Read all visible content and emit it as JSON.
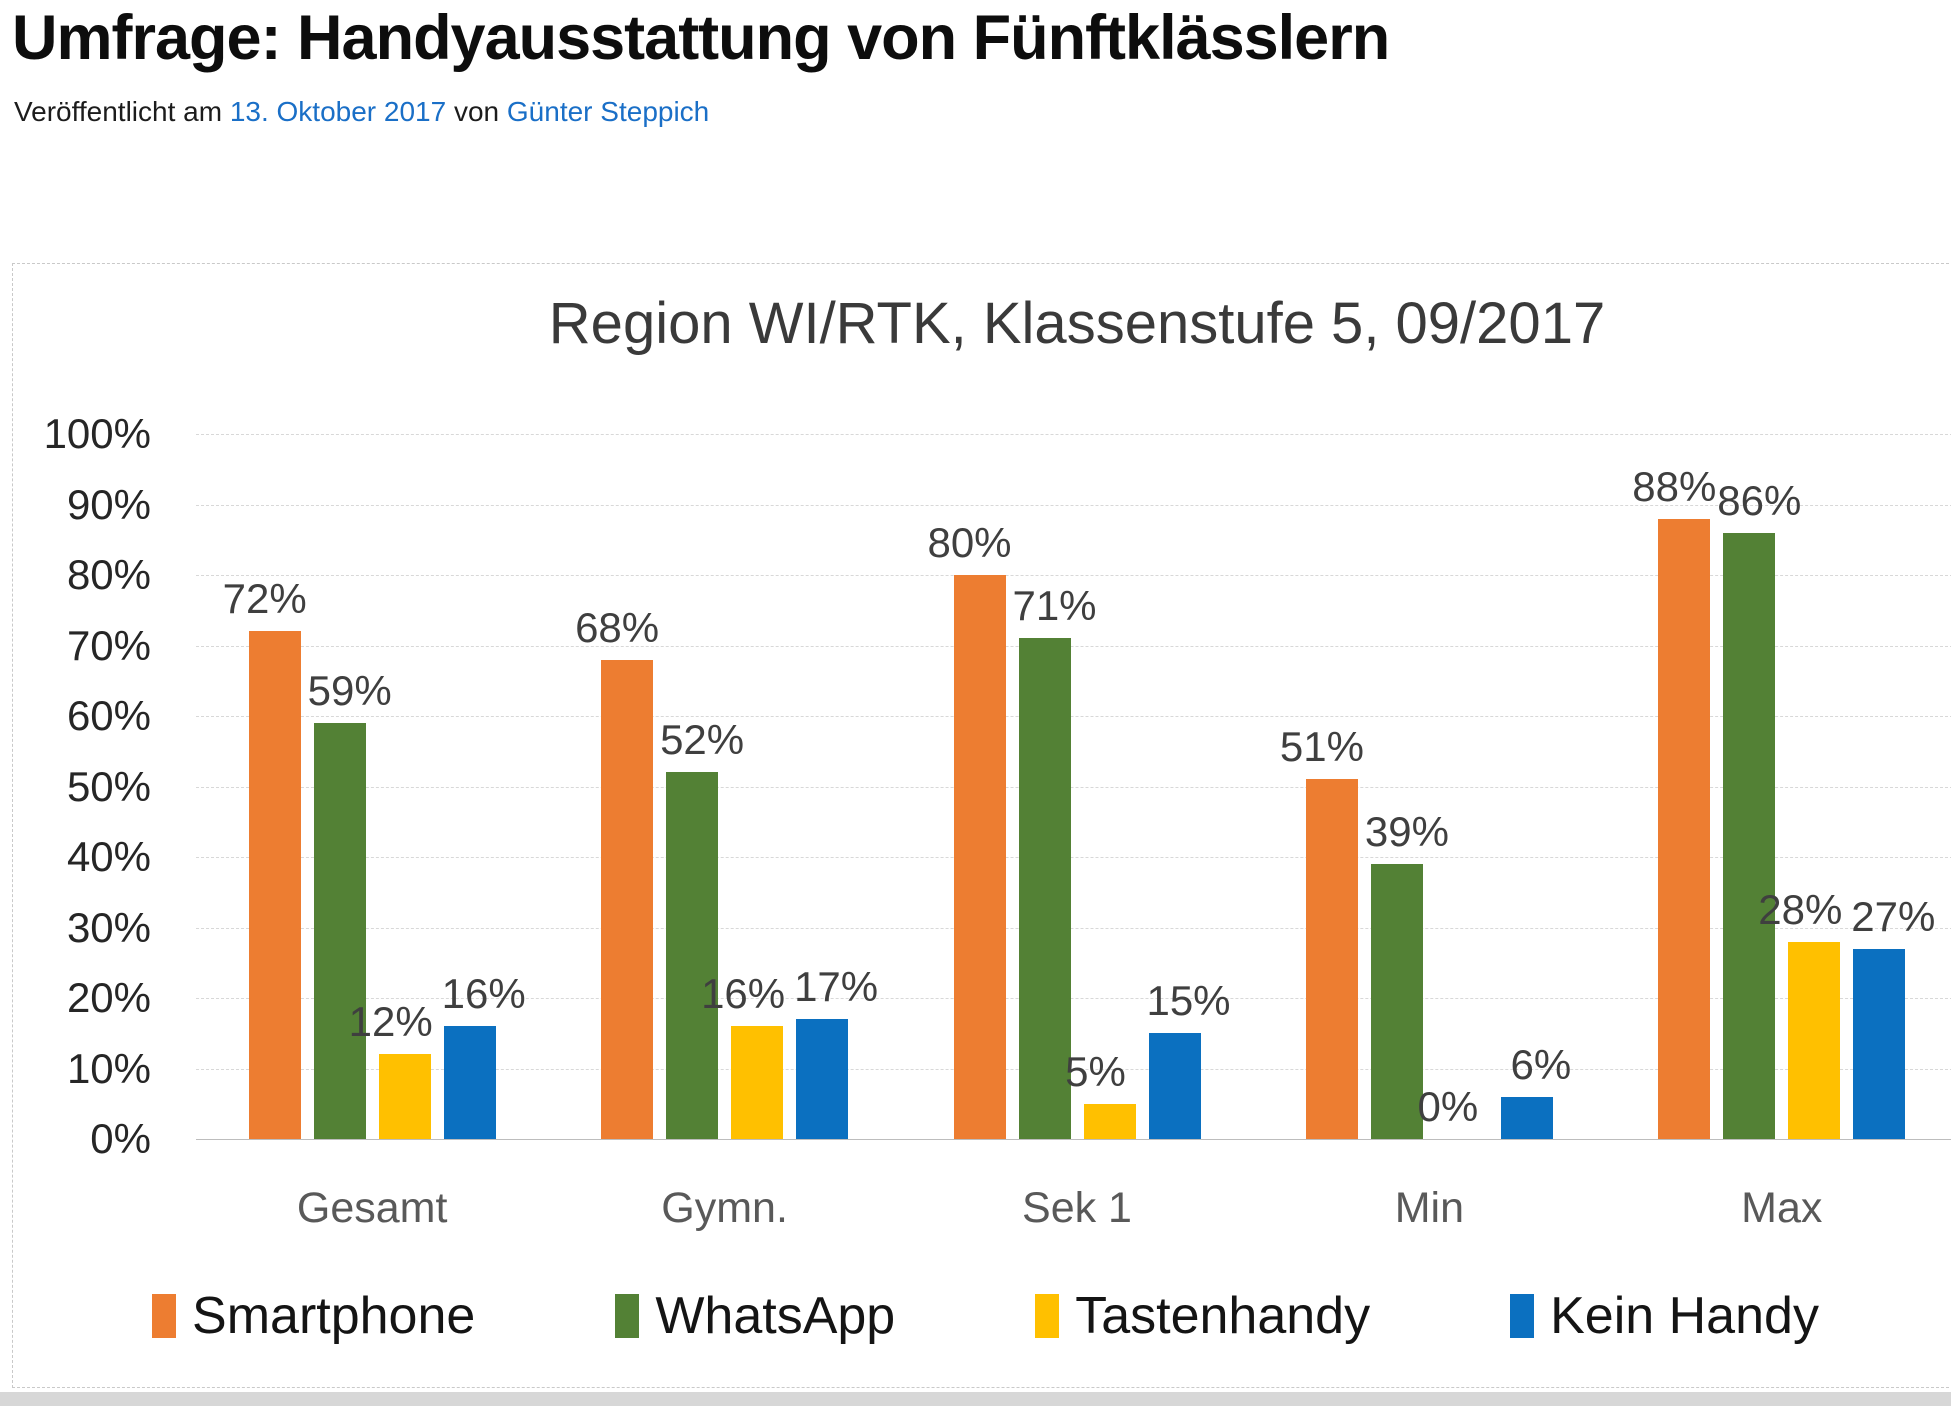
{
  "page": {
    "title": "Umfrage: Handyausstattung von Fünftklässlern",
    "byline": {
      "prefix": "Veröffentlicht am ",
      "date_link": "13. Oktober 2017",
      "middle": " von ",
      "author_link": "Günter Steppich"
    },
    "link_color": "#1a6fc7"
  },
  "chart_data": {
    "type": "bar",
    "title": "Region WI/RTK, Klassenstufe 5, 09/2017",
    "categories": [
      "Gesamt",
      "Gymn.",
      "Sek 1",
      "Min",
      "Max"
    ],
    "series": [
      {
        "name": "Smartphone",
        "color": "#ED7D31",
        "values": [
          72,
          68,
          80,
          51,
          88
        ]
      },
      {
        "name": "WhatsApp",
        "color": "#538135",
        "values": [
          59,
          52,
          71,
          39,
          86
        ]
      },
      {
        "name": "Tastenhandy",
        "color": "#FFC000",
        "values": [
          12,
          16,
          5,
          0,
          28
        ]
      },
      {
        "name": "Kein Handy",
        "color": "#0B70C0",
        "values": [
          16,
          17,
          15,
          6,
          27
        ]
      }
    ],
    "y_axis": {
      "min": 0,
      "max": 100,
      "step": 10,
      "tick_suffix": "%"
    },
    "data_label_suffix": "%",
    "grid": true,
    "legend_position": "bottom"
  }
}
